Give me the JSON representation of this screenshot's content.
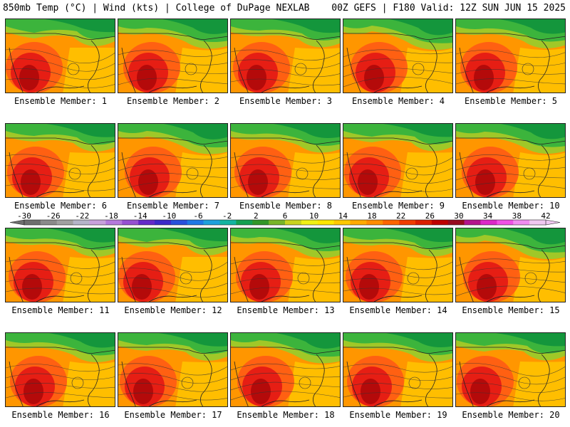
{
  "header": {
    "left": "850mb Temp (°C) | Wind (kts) | College of DuPage NEXLAB",
    "right": "00Z GEFS | F180 Valid: 12Z SUN JUN 15 2025"
  },
  "members": [
    {
      "label": "Ensemble Member: 1"
    },
    {
      "label": "Ensemble Member: 2"
    },
    {
      "label": "Ensemble Member: 3"
    },
    {
      "label": "Ensemble Member: 4"
    },
    {
      "label": "Ensemble Member: 5"
    },
    {
      "label": "Ensemble Member: 6"
    },
    {
      "label": "Ensemble Member: 7"
    },
    {
      "label": "Ensemble Member: 8"
    },
    {
      "label": "Ensemble Member: 9"
    },
    {
      "label": "Ensemble Member: 10"
    },
    {
      "label": "Ensemble Member: 11"
    },
    {
      "label": "Ensemble Member: 12"
    },
    {
      "label": "Ensemble Member: 13"
    },
    {
      "label": "Ensemble Member: 14"
    },
    {
      "label": "Ensemble Member: 15"
    },
    {
      "label": "Ensemble Member: 16"
    },
    {
      "label": "Ensemble Member: 17"
    },
    {
      "label": "Ensemble Member: 18"
    },
    {
      "label": "Ensemble Member: 19"
    },
    {
      "label": "Ensemble Member: 20"
    }
  ],
  "colorbar": {
    "labels": [
      "-30",
      "-26",
      "-22",
      "-18",
      "-14",
      "-10",
      "-6",
      "-2",
      "2",
      "6",
      "10",
      "14",
      "18",
      "22",
      "26",
      "30",
      "34",
      "38",
      "42"
    ],
    "colors": [
      "#6e6e6e",
      "#8a8a8a",
      "#a0a0a0",
      "#b4b4c8",
      "#c8a0dc",
      "#b478dc",
      "#9650d2",
      "#6428c8",
      "#3c28c8",
      "#2850dc",
      "#1e78e6",
      "#1ea0dc",
      "#14b4a0",
      "#14a050",
      "#329628",
      "#78b428",
      "#c8d21e",
      "#f0f014",
      "#ffe600",
      "#ffc800",
      "#ffaa00",
      "#ff8c00",
      "#ff6400",
      "#f03c00",
      "#dc1e00",
      "#be0000",
      "#960a1e",
      "#b4148c",
      "#dc28c8",
      "#f050e6",
      "#f08cf0",
      "#f0c8f0"
    ]
  },
  "palette": {
    "green_dark": "#14963c",
    "green": "#3cb43c",
    "yellow_green": "#a0c828",
    "yellow": "#f0dc14",
    "orange_light": "#ffbe00",
    "orange": "#ff9600",
    "red_orange": "#ff5a14",
    "red": "#e61e14",
    "dark_red": "#b40a0a"
  }
}
